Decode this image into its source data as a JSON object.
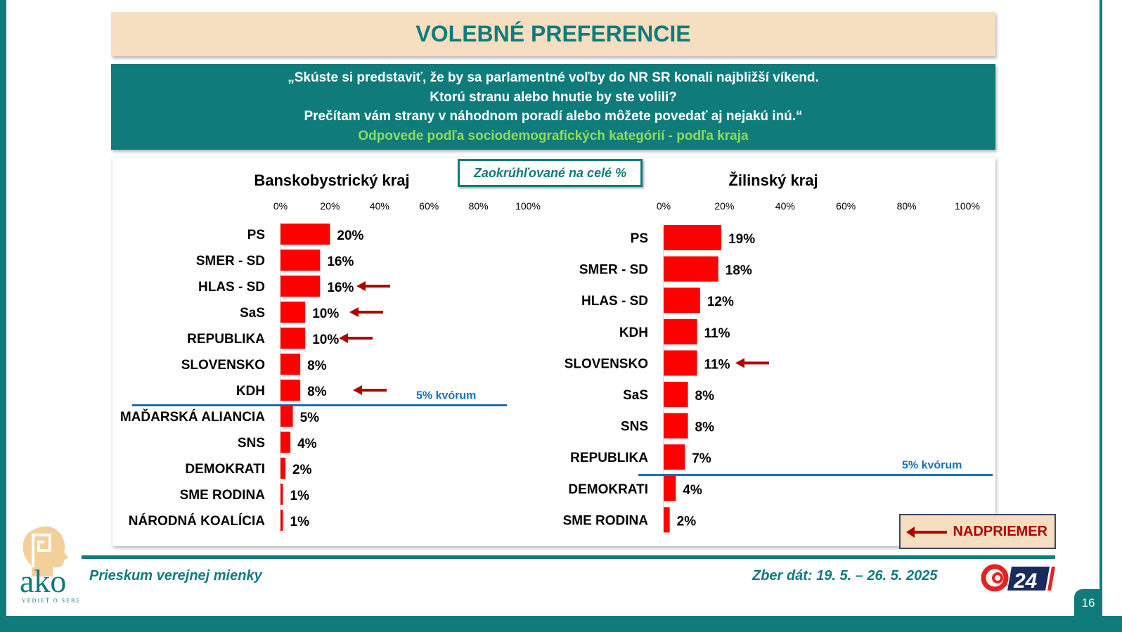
{
  "title": "VOLEBNÉ PREFERENCIE",
  "question": {
    "lines": [
      "„Skúste si predstaviť, že by sa parlamentné voľby do NR SR konali najbližší víkend.",
      "Ktorú stranu alebo hnutie by ste volili?",
      "Prečítam vám strany v náhodnom poradí alebo môžete povedať aj nejakú inú.“"
    ],
    "subtitle": "Odpovede podľa sociodemografických kategórií - podľa kraja"
  },
  "rounding_note": "Zaokrúhľované na celé %",
  "legend": {
    "label": "NADPRIEMER",
    "icon": "left-arrow-icon",
    "color": "#b00000"
  },
  "footer": {
    "left": "Prieskum verejnej mienky",
    "right": "Zber dát: 19. 5. – 26. 5. 2025",
    "page": "16",
    "logo_text": "ako",
    "logo_tagline": "VEDIEŤ O SEBE",
    "tv_logo": "24"
  },
  "colors": {
    "teal": "#0f7b7b",
    "bar": "#ff0000",
    "arrow": "#b00000",
    "kvorum": "#1a6fb5",
    "beige": "#f6dfc0"
  },
  "chart_data": [
    {
      "type": "bar",
      "orientation": "horizontal",
      "title": "Banskobystrický kraj",
      "xlim": [
        0,
        100
      ],
      "ticks": [
        "0%",
        "20%",
        "40%",
        "60%",
        "80%",
        "100%"
      ],
      "categories": [
        "PS",
        "SMER - SD",
        "HLAS - SD",
        "SaS",
        "REPUBLIKA",
        "SLOVENSKO",
        "KDH",
        "MAĎARSKÁ ALIANCIA",
        "SNS",
        "DEMOKRATI",
        "SME RODINA",
        "NÁRODNÁ KOALÍCIA"
      ],
      "values": [
        20,
        16,
        16,
        10,
        10,
        8,
        8,
        5,
        4,
        2,
        1,
        1
      ],
      "above_average": [
        "HLAS - SD",
        "SaS",
        "REPUBLIKA",
        "KDH"
      ],
      "threshold_label": "5% kvórum",
      "threshold_after": "KDH"
    },
    {
      "type": "bar",
      "orientation": "horizontal",
      "title": "Žilinský kraj",
      "xlim": [
        0,
        100
      ],
      "ticks": [
        "0%",
        "20%",
        "40%",
        "60%",
        "80%",
        "100%"
      ],
      "categories": [
        "PS",
        "SMER - SD",
        "HLAS - SD",
        "KDH",
        "SLOVENSKO",
        "SaS",
        "SNS",
        "REPUBLIKA",
        "DEMOKRATI",
        "SME RODINA"
      ],
      "values": [
        19,
        18,
        12,
        11,
        11,
        8,
        8,
        7,
        4,
        2
      ],
      "above_average": [
        "SLOVENSKO"
      ],
      "threshold_label": "5% kvórum",
      "threshold_after": "REPUBLIKA"
    }
  ]
}
